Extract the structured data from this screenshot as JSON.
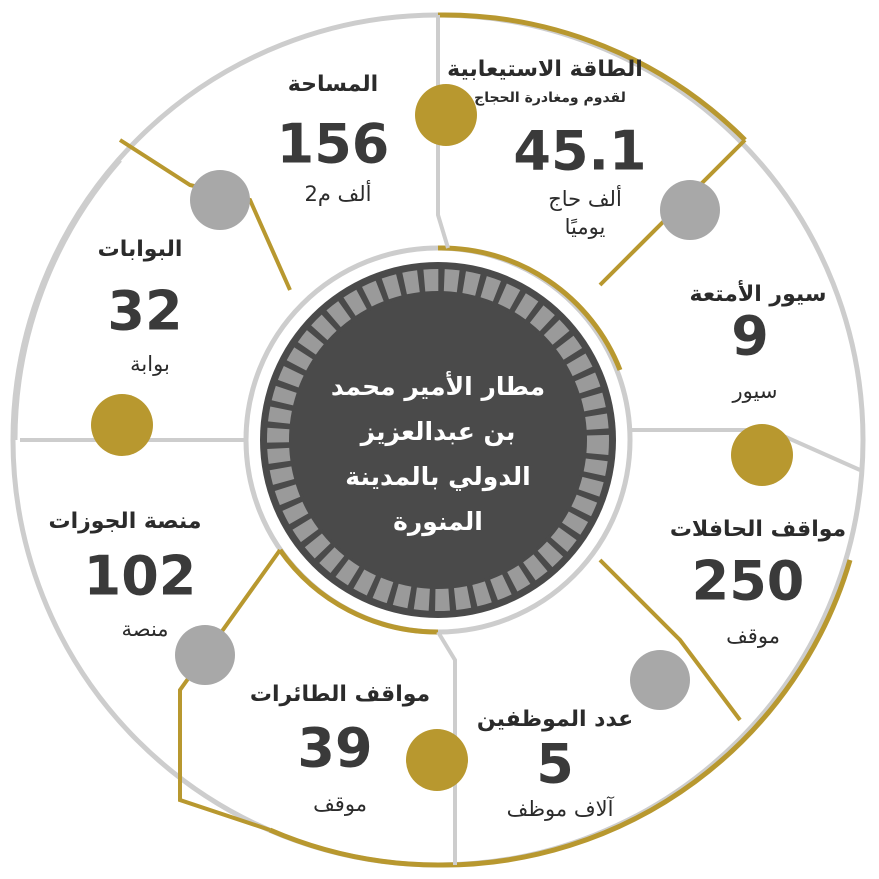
{
  "center": {
    "lines": [
      "مطار الأمير محمد",
      "بن عبدالعزيز",
      "الدولي بالمدينة",
      "المنورة"
    ]
  },
  "segments": [
    {
      "title": "المساحة",
      "number": 156,
      "unit": [
        "ألف م2"
      ]
    },
    {
      "title": "الطاقة الاستيعابية",
      "subtitle": "لقدوم ومغادرة الحجاج",
      "number": 45.1,
      "unit": [
        "ألف حاج",
        "يوميًا"
      ]
    },
    {
      "title": "سيور الأمتعة",
      "number": 9,
      "unit": [
        "سيور"
      ]
    },
    {
      "title": "مواقف الحافلات",
      "number": 250,
      "unit": [
        "موقف"
      ]
    },
    {
      "title": "عدد الموظفين",
      "number": 5,
      "unit": [
        "آلاف موظف"
      ]
    },
    {
      "title": "مواقف الطائرات",
      "number": 39,
      "unit": [
        "موقف"
      ]
    },
    {
      "title": "منصة الجوزات",
      "number": 102,
      "unit": [
        "منصة"
      ]
    },
    {
      "title": "البوابات",
      "number": 32,
      "unit": [
        "بوابة"
      ]
    }
  ]
}
